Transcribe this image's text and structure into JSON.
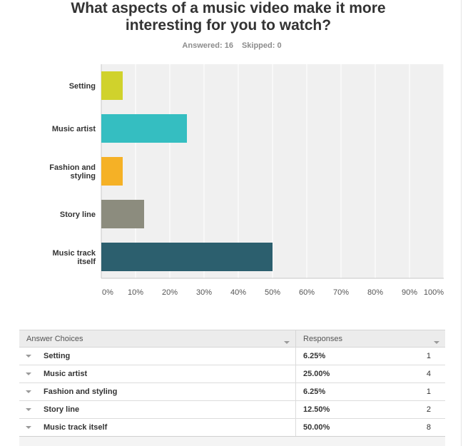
{
  "survey": {
    "title": "What aspects of a music video make it more interesting for you to watch?",
    "answered_label": "Answered: 16",
    "skipped_label": "Skipped: 0"
  },
  "chart_data": {
    "type": "bar",
    "orientation": "horizontal",
    "categories": [
      "Setting",
      "Music artist",
      "Fashion and styling",
      "Story line",
      "Music track itself"
    ],
    "category_lines": [
      [
        "Setting"
      ],
      [
        "Music artist"
      ],
      [
        "Fashion and",
        "styling"
      ],
      [
        "Story line"
      ],
      [
        "Music track",
        "itself"
      ]
    ],
    "values": [
      6.25,
      25.0,
      6.25,
      12.5,
      50.0
    ],
    "colors": [
      "#d0d22c",
      "#35bec1",
      "#f5b126",
      "#8c8c7e",
      "#2c5f6e"
    ],
    "xlim": [
      0,
      100
    ],
    "xticks": [
      0,
      10,
      20,
      30,
      40,
      50,
      60,
      70,
      80,
      90,
      100
    ],
    "xtick_labels": [
      "0%",
      "10%",
      "20%",
      "30%",
      "40%",
      "50%",
      "60%",
      "70%",
      "80%",
      "90%",
      "100%"
    ],
    "grid": true,
    "plot_background": "#f0f0f0"
  },
  "table": {
    "headers": {
      "choices": "Answer Choices",
      "responses": "Responses"
    },
    "rows": [
      {
        "label": "Setting",
        "percent": "6.25%",
        "count": "1"
      },
      {
        "label": "Music artist",
        "percent": "25.00%",
        "count": "4"
      },
      {
        "label": "Fashion and styling",
        "percent": "6.25%",
        "count": "1"
      },
      {
        "label": "Story line",
        "percent": "12.50%",
        "count": "2"
      },
      {
        "label": "Music track itself",
        "percent": "50.00%",
        "count": "8"
      }
    ]
  }
}
